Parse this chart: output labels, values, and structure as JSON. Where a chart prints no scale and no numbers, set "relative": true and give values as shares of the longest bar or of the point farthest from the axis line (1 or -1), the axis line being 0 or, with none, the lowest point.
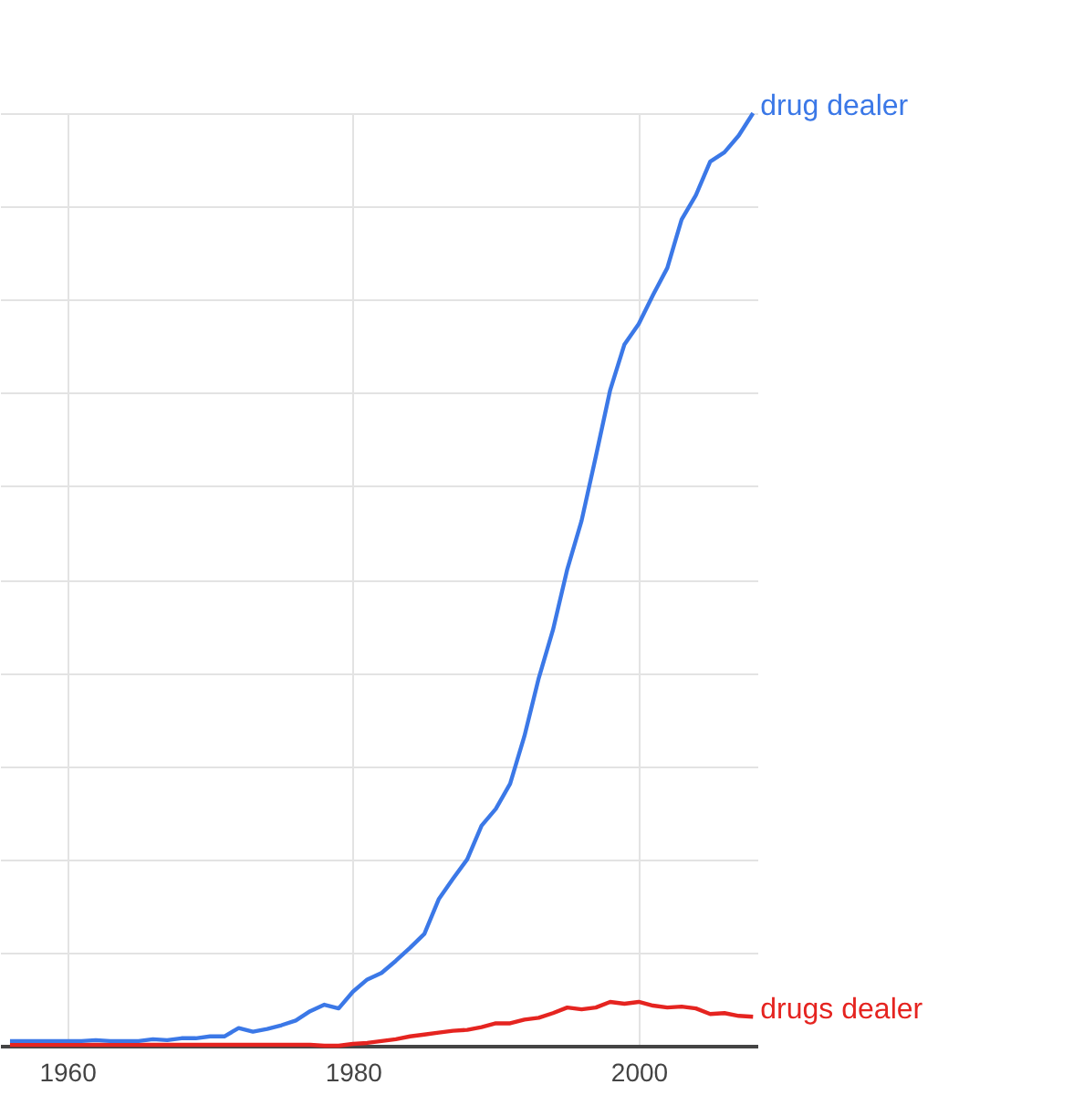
{
  "chart_data": {
    "type": "line",
    "relative": true,
    "x": [
      1956,
      1957,
      1958,
      1959,
      1960,
      1961,
      1962,
      1963,
      1964,
      1965,
      1966,
      1967,
      1968,
      1969,
      1970,
      1971,
      1972,
      1973,
      1974,
      1975,
      1976,
      1977,
      1978,
      1979,
      1980,
      1981,
      1982,
      1983,
      1984,
      1985,
      1986,
      1987,
      1988,
      1989,
      1990,
      1991,
      1992,
      1993,
      1994,
      1995,
      1996,
      1997,
      1998,
      1999,
      2000,
      2001,
      2002,
      2003,
      2004,
      2005,
      2006,
      2007,
      2008
    ],
    "series": [
      {
        "name": "drug dealer",
        "color": "#3b78e7",
        "values": [
          0.005,
          0.005,
          0.005,
          0.005,
          0.005,
          0.005,
          0.006,
          0.005,
          0.005,
          0.005,
          0.007,
          0.006,
          0.008,
          0.008,
          0.01,
          0.01,
          0.019,
          0.015,
          0.018,
          0.022,
          0.027,
          0.037,
          0.044,
          0.04,
          0.058,
          0.071,
          0.078,
          0.091,
          0.105,
          0.12,
          0.157,
          0.179,
          0.2,
          0.236,
          0.254,
          0.281,
          0.332,
          0.394,
          0.446,
          0.511,
          0.563,
          0.632,
          0.703,
          0.752,
          0.774,
          0.805,
          0.834,
          0.886,
          0.912,
          0.948,
          0.958,
          0.976,
          1.0
        ]
      },
      {
        "name": "drugs dealer",
        "color": "#e52420",
        "values": [
          0.001,
          0.001,
          0.001,
          0.001,
          0.001,
          0.001,
          0.001,
          0.001,
          0.001,
          0.001,
          0.001,
          0.001,
          0.001,
          0.001,
          0.001,
          0.001,
          0.001,
          0.001,
          0.001,
          0.001,
          0.001,
          0.001,
          0.0,
          0.0,
          0.002,
          0.003,
          0.005,
          0.007,
          0.01,
          0.012,
          0.014,
          0.016,
          0.017,
          0.02,
          0.024,
          0.024,
          0.028,
          0.03,
          0.035,
          0.041,
          0.039,
          0.041,
          0.047,
          0.045,
          0.047,
          0.043,
          0.041,
          0.042,
          0.04,
          0.034,
          0.035,
          0.032,
          0.031
        ]
      }
    ],
    "xlim": [
      1955.3,
      2008.3
    ],
    "xticks": [
      1960,
      1980,
      2000
    ],
    "grid": true,
    "legend": false
  }
}
